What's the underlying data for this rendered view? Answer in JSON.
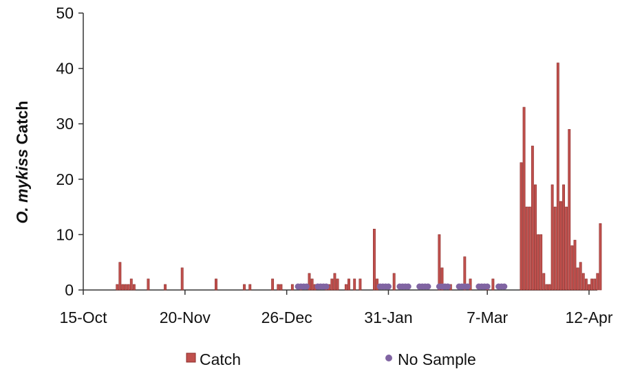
{
  "chart_data": {
    "type": "bar",
    "title": "",
    "ylabel_italic": "O. mykiss",
    "ylabel_rest": " Catch",
    "xlabel": "",
    "ylim": [
      0,
      50
    ],
    "yticks": [
      0,
      10,
      20,
      30,
      40,
      50
    ],
    "xlim_day": [
      0,
      179
    ],
    "xticks": [
      {
        "label": "15-Oct",
        "day": 0
      },
      {
        "label": "20-Nov",
        "day": 36
      },
      {
        "label": "26-Dec",
        "day": 72
      },
      {
        "label": "31-Jan",
        "day": 108
      },
      {
        "label": "7-Mar",
        "day": 143
      },
      {
        "label": "12-Apr",
        "day": 179
      }
    ],
    "colors": {
      "catch": "#c0504d",
      "catch_edge": "#8b2d2a",
      "no_sample": "#8064a2"
    },
    "legend": {
      "position": "bottom",
      "entries": [
        {
          "key": "catch",
          "label": "Catch"
        },
        {
          "key": "no_sample",
          "label": "No Sample"
        }
      ]
    },
    "series": [
      {
        "name": "Catch",
        "key": "catch",
        "points": [
          [
            12,
            1
          ],
          [
            13,
            5
          ],
          [
            14,
            1
          ],
          [
            15,
            1
          ],
          [
            16,
            1
          ],
          [
            17,
            2
          ],
          [
            18,
            1
          ],
          [
            23,
            2
          ],
          [
            29,
            1
          ],
          [
            35,
            4
          ],
          [
            47,
            2
          ],
          [
            57,
            1
          ],
          [
            59,
            1
          ],
          [
            67,
            2
          ],
          [
            69,
            1
          ],
          [
            70,
            1
          ],
          [
            74,
            1
          ],
          [
            77,
            1
          ],
          [
            80,
            3
          ],
          [
            81,
            2
          ],
          [
            82,
            1
          ],
          [
            86,
            1
          ],
          [
            87,
            1
          ],
          [
            88,
            2
          ],
          [
            89,
            3
          ],
          [
            90,
            2
          ],
          [
            93,
            1
          ],
          [
            94,
            2
          ],
          [
            96,
            2
          ],
          [
            98,
            2
          ],
          [
            103,
            11
          ],
          [
            104,
            2
          ],
          [
            110,
            3
          ],
          [
            126,
            10
          ],
          [
            127,
            4
          ],
          [
            130,
            1
          ],
          [
            135,
            6
          ],
          [
            137,
            2
          ],
          [
            143,
            1
          ],
          [
            145,
            2
          ],
          [
            155,
            23
          ],
          [
            156,
            33
          ],
          [
            157,
            15
          ],
          [
            158,
            15
          ],
          [
            159,
            26
          ],
          [
            160,
            19
          ],
          [
            161,
            10
          ],
          [
            162,
            10
          ],
          [
            163,
            3
          ],
          [
            164,
            1
          ],
          [
            165,
            1
          ],
          [
            166,
            19
          ],
          [
            167,
            15
          ],
          [
            168,
            41
          ],
          [
            169,
            16
          ],
          [
            170,
            19
          ],
          [
            171,
            15
          ],
          [
            172,
            29
          ],
          [
            173,
            8
          ],
          [
            174,
            9
          ],
          [
            175,
            4
          ],
          [
            176,
            5
          ],
          [
            177,
            3
          ],
          [
            178,
            2
          ],
          [
            179,
            1
          ],
          [
            180,
            2
          ],
          [
            181,
            2
          ],
          [
            182,
            3
          ],
          [
            183,
            12
          ]
        ]
      },
      {
        "name": "No Sample",
        "key": "no_sample",
        "days": [
          76,
          77,
          78,
          79,
          83,
          84,
          85,
          86,
          105,
          106,
          107,
          108,
          112,
          113,
          114,
          115,
          119,
          120,
          121,
          122,
          126,
          127,
          128,
          129,
          133,
          134,
          135,
          136,
          140,
          141,
          142,
          143,
          147,
          148,
          149
        ]
      }
    ]
  }
}
